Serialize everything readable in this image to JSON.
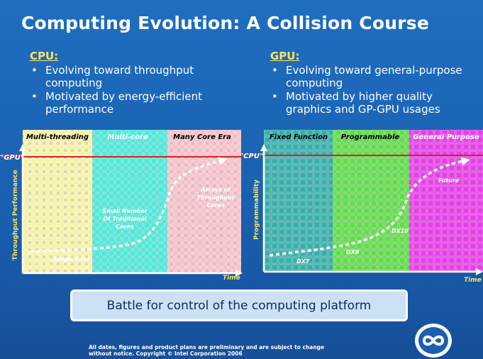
{
  "slide": {
    "title": "Computing Evolution: A Collision Course",
    "cpu": {
      "heading": "CPU:",
      "bullets": [
        "Evolving toward throughput computing",
        "Motivated by energy-efficient performance"
      ]
    },
    "gpu": {
      "heading": "GPU:",
      "bullets": [
        "Evolving toward general-purpose computing",
        "Motivated by higher quality graphics and GP-GPU usages"
      ]
    },
    "battle": "Battle for control of the computing platform",
    "disclaimer_line1": "All dates, figures and product plans are preliminary and are subject to change",
    "disclaimer_line2": "without notice.   Copyright © Intel Corporation 2006"
  },
  "diagrams": {
    "cpu": {
      "eras": [
        {
          "label": "Multi-threading",
          "color": "#f6f1a2"
        },
        {
          "label": "Multi-core",
          "color": "#3fe6d6"
        },
        {
          "label": "Many Core Era",
          "color": "#f5bcc6"
        }
      ],
      "target_label": "\"GPU\"",
      "y_label": "Throughput Performance",
      "x_label": "Time",
      "annotations": [
        "Single Core",
        "Small Number Of Traditional Cores",
        "Arrays of Throughput Cores"
      ]
    },
    "gpu": {
      "eras": [
        {
          "label": "Fixed Function",
          "color": "#1fa6a2"
        },
        {
          "label": "Programmable",
          "color": "#50d838"
        },
        {
          "label": "General Purpose",
          "color": "#e428e6"
        }
      ],
      "target_label": "\"CPU\"",
      "y_label": "Programmability",
      "x_label": "Time",
      "annotations": [
        "DX7",
        "DX9",
        "DX10",
        "Future"
      ]
    }
  }
}
